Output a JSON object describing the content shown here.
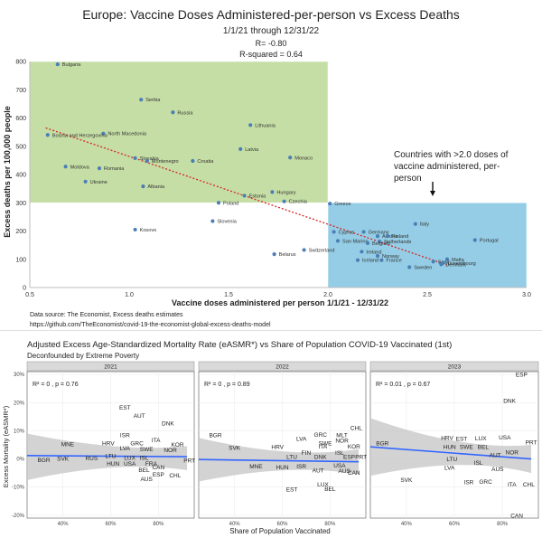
{
  "top_chart": {
    "title": "Europe: Vaccine Doses Administered-per-person vs Excess Deaths",
    "subtitle": "1/1/21 through 12/31/22",
    "r_label": "R= -0.80",
    "r2_label": "R-squared = 0.64",
    "annotation": [
      "Countries with >2.0 doses of",
      "vaccine administered, per-",
      "person"
    ],
    "xlabel": "Vaccine doses administered per person 1/1/21 - 12/31/22",
    "ylabel": "Excess deaths per 100,000 people",
    "source_line": "Data source: The Economist, Excess deaths estimates",
    "source_url": "https://github.com/TheEconomist/covid-19-the-economist-global-excess-deaths-model",
    "colors": {
      "green_region": "#c5dea5",
      "blue_region": "#94cde5",
      "point": "#4a7fb5",
      "trend": "#d62728"
    }
  },
  "bottom_chart": {
    "title": "Adjusted Excess Age-Standardized Mortality Rate (eASMR*) vs Share of Population COVID-19 Vaccinated (1st)",
    "subtitle": "Deconfounded by Extreme Poverty",
    "xlabel": "Share of Population Vaccinated",
    "ylabel": "Excess Mortality (eASMR*)",
    "colors": {
      "panel_bg": "#ebebeb",
      "strip_bg": "#d9d9d9",
      "band": "#c8c8c8",
      "fit": "#3366ff"
    }
  },
  "chart_data": [
    {
      "type": "scatter",
      "title": "Europe: Vaccine Doses Administered-per-person vs Excess Deaths",
      "xlabel": "Vaccine doses administered per person 1/1/21 - 12/31/22",
      "ylabel": "Excess deaths per 100,000 people",
      "xlim": [
        0.5,
        3.0
      ],
      "ylim": [
        0,
        800
      ],
      "xticks": [
        "0.5",
        "1.0",
        "1.5",
        "2.0",
        "2.5",
        "3.0"
      ],
      "yticks": [
        "0",
        "100",
        "200",
        "300",
        "400",
        "500",
        "600",
        "700",
        "800"
      ],
      "grid": false,
      "regions": [
        {
          "x": [
            0.5,
            2.0
          ],
          "y": [
            300,
            800
          ],
          "color": "#c5dea5"
        },
        {
          "x": [
            2.0,
            3.0
          ],
          "y": [
            0,
            300
          ],
          "color": "#94cde5"
        }
      ],
      "trendline": {
        "x": [
          0.58,
          2.6
        ],
        "y": [
          565,
          80
        ]
      },
      "points": [
        {
          "label": "Bulgaria",
          "x": 0.64,
          "y": 790
        },
        {
          "label": "Serbia",
          "x": 1.06,
          "y": 665
        },
        {
          "label": "Russia",
          "x": 1.22,
          "y": 620
        },
        {
          "label": "North Macedonia",
          "x": 0.87,
          "y": 545
        },
        {
          "label": "Bosnia and Herzegovina",
          "x": 0.59,
          "y": 540
        },
        {
          "label": "Lithuania",
          "x": 1.61,
          "y": 575
        },
        {
          "label": "Latvia",
          "x": 1.56,
          "y": 490
        },
        {
          "label": "Monaco",
          "x": 1.81,
          "y": 460
        },
        {
          "label": "Slovakia",
          "x": 1.03,
          "y": 458
        },
        {
          "label": "Montenegro",
          "x": 1.09,
          "y": 448
        },
        {
          "label": "Croatia",
          "x": 1.32,
          "y": 448
        },
        {
          "label": "Moldova",
          "x": 0.68,
          "y": 428
        },
        {
          "label": "Romania",
          "x": 0.85,
          "y": 422
        },
        {
          "label": "Ukraine",
          "x": 0.78,
          "y": 375
        },
        {
          "label": "Albania",
          "x": 1.07,
          "y": 358
        },
        {
          "label": "Hungary",
          "x": 1.72,
          "y": 338
        },
        {
          "label": "Estonia",
          "x": 1.58,
          "y": 325
        },
        {
          "label": "Czechia",
          "x": 1.78,
          "y": 305
        },
        {
          "label": "Poland",
          "x": 1.45,
          "y": 300
        },
        {
          "label": "Slovenia",
          "x": 1.42,
          "y": 235
        },
        {
          "label": "Kosovo",
          "x": 1.03,
          "y": 205
        },
        {
          "label": "Greece",
          "x": 2.01,
          "y": 297
        },
        {
          "label": "Italy",
          "x": 2.44,
          "y": 225
        },
        {
          "label": "Cyprus",
          "x": 2.03,
          "y": 197
        },
        {
          "label": "Germany",
          "x": 2.18,
          "y": 197
        },
        {
          "label": "Austria",
          "x": 2.25,
          "y": 182
        },
        {
          "label": "Finland",
          "x": 2.3,
          "y": 183
        },
        {
          "label": "Portugal",
          "x": 2.74,
          "y": 168
        },
        {
          "label": "San Marino",
          "x": 2.05,
          "y": 165
        },
        {
          "label": "Netherlands",
          "x": 2.26,
          "y": 163
        },
        {
          "label": "Belgium",
          "x": 2.2,
          "y": 157
        },
        {
          "label": "Switzerland",
          "x": 1.88,
          "y": 133
        },
        {
          "label": "Ireland",
          "x": 2.17,
          "y": 127
        },
        {
          "label": "Belarus",
          "x": 1.73,
          "y": 118
        },
        {
          "label": "Norway",
          "x": 2.25,
          "y": 112
        },
        {
          "label": "Malta",
          "x": 2.6,
          "y": 100
        },
        {
          "label": "Iceland",
          "x": 2.15,
          "y": 97
        },
        {
          "label": "France",
          "x": 2.27,
          "y": 97
        },
        {
          "label": "Spain",
          "x": 2.53,
          "y": 92
        },
        {
          "label": "Luxembourg",
          "x": 2.58,
          "y": 87
        },
        {
          "label": "Denmark",
          "x": 2.57,
          "y": 82
        },
        {
          "label": "Sweden",
          "x": 2.41,
          "y": 72
        }
      ]
    },
    {
      "type": "scatter",
      "facet": "2021",
      "stat_label": "R² = 0 , p = 0.76",
      "xlabel": "Share of Population Vaccinated",
      "ylabel": "Excess Mortality (eASMR*)",
      "xlim": [
        0.25,
        0.95
      ],
      "ylim": [
        -0.21,
        0.31
      ],
      "xticks": [
        "40%",
        "60%",
        "80%"
      ],
      "yticks": [
        "-20%",
        "-10%",
        "0%",
        "10%",
        "20%",
        "30%"
      ],
      "fit": {
        "x": [
          0.25,
          0.92
        ],
        "y": [
          0.012,
          0.008
        ]
      },
      "band": {
        "upper": [
          0.09,
          0.035,
          0.045
        ],
        "lower": [
          -0.075,
          -0.015,
          -0.04
        ]
      },
      "points": [
        {
          "label": "EST",
          "x": 0.66,
          "y": 0.183
        },
        {
          "label": "AUT",
          "x": 0.72,
          "y": 0.155
        },
        {
          "label": "DNK",
          "x": 0.84,
          "y": 0.127
        },
        {
          "label": "ISR",
          "x": 0.66,
          "y": 0.085
        },
        {
          "label": "ITA",
          "x": 0.79,
          "y": 0.068
        },
        {
          "label": "GRC",
          "x": 0.71,
          "y": 0.057
        },
        {
          "label": "HRV",
          "x": 0.59,
          "y": 0.056
        },
        {
          "label": "MNE",
          "x": 0.42,
          "y": 0.054
        },
        {
          "label": "KOR",
          "x": 0.88,
          "y": 0.052
        },
        {
          "label": "LVA",
          "x": 0.66,
          "y": 0.039
        },
        {
          "label": "SWE",
          "x": 0.75,
          "y": 0.036
        },
        {
          "label": "NOR",
          "x": 0.85,
          "y": 0.032
        },
        {
          "label": "LTU",
          "x": 0.6,
          "y": 0.012
        },
        {
          "label": "RUS",
          "x": 0.52,
          "y": 0.004
        },
        {
          "label": "LUX",
          "x": 0.68,
          "y": 0.005
        },
        {
          "label": "ISL",
          "x": 0.74,
          "y": 0.005
        },
        {
          "label": "SVK",
          "x": 0.4,
          "y": 0.002
        },
        {
          "label": "BGR",
          "x": 0.32,
          "y": -0.003
        },
        {
          "label": "PRT",
          "x": 0.93,
          "y": -0.005
        },
        {
          "label": "HUN",
          "x": 0.61,
          "y": -0.015
        },
        {
          "label": "USA",
          "x": 0.68,
          "y": -0.015
        },
        {
          "label": "FRA",
          "x": 0.77,
          "y": -0.015
        },
        {
          "label": "CAN",
          "x": 0.8,
          "y": -0.028
        },
        {
          "label": "BEL",
          "x": 0.74,
          "y": -0.038
        },
        {
          "label": "ESP",
          "x": 0.8,
          "y": -0.054
        },
        {
          "label": "CHL",
          "x": 0.87,
          "y": -0.058
        },
        {
          "label": "AUS",
          "x": 0.75,
          "y": -0.07
        }
      ]
    },
    {
      "type": "scatter",
      "facet": "2022",
      "stat_label": "R² = 0 , p = 0.89",
      "xlabel": "Share of Population Vaccinated",
      "ylabel": "Excess Mortality (eASMR*)",
      "xlim": [
        0.25,
        0.95
      ],
      "ylim": [
        -0.21,
        0.31
      ],
      "xticks": [
        "40%",
        "60%",
        "80%"
      ],
      "yticks": [
        "-20%",
        "-10%",
        "0%",
        "10%",
        "20%",
        "30%"
      ],
      "fit": {
        "x": [
          0.25,
          0.92
        ],
        "y": [
          -0.002,
          -0.01
        ]
      },
      "band": {
        "upper": [
          0.075,
          0.01,
          0.035
        ],
        "lower": [
          -0.08,
          -0.025,
          -0.055
        ]
      },
      "points": [
        {
          "label": "CHL",
          "x": 0.91,
          "y": 0.111
        },
        {
          "label": "BGR",
          "x": 0.32,
          "y": 0.085
        },
        {
          "label": "MLT",
          "x": 0.85,
          "y": 0.085
        },
        {
          "label": "GRC",
          "x": 0.76,
          "y": 0.087
        },
        {
          "label": "LVA",
          "x": 0.68,
          "y": 0.072
        },
        {
          "label": "NOR",
          "x": 0.85,
          "y": 0.066
        },
        {
          "label": "SWE",
          "x": 0.78,
          "y": 0.057
        },
        {
          "label": "HRV",
          "x": 0.58,
          "y": 0.044
        },
        {
          "label": "SVK",
          "x": 0.4,
          "y": 0.04
        },
        {
          "label": "ITA",
          "x": 0.77,
          "y": 0.045
        },
        {
          "label": "KOR",
          "x": 0.9,
          "y": 0.045
        },
        {
          "label": "LTU",
          "x": 0.64,
          "y": 0.008
        },
        {
          "label": "DNK",
          "x": 0.76,
          "y": 0.008
        },
        {
          "label": "ESP",
          "x": 0.88,
          "y": 0.008
        },
        {
          "label": "PRT",
          "x": 0.93,
          "y": 0.008
        },
        {
          "label": "ISL",
          "x": 0.84,
          "y": 0.022
        },
        {
          "label": "FIN",
          "x": 0.7,
          "y": 0.022
        },
        {
          "label": "MNE",
          "x": 0.49,
          "y": -0.025
        },
        {
          "label": "HUN",
          "x": 0.6,
          "y": -0.028
        },
        {
          "label": "ISR",
          "x": 0.68,
          "y": -0.025
        },
        {
          "label": "USA",
          "x": 0.84,
          "y": -0.023
        },
        {
          "label": "AUT",
          "x": 0.75,
          "y": -0.04
        },
        {
          "label": "AUS",
          "x": 0.86,
          "y": -0.042
        },
        {
          "label": "CAN",
          "x": 0.9,
          "y": -0.048
        },
        {
          "label": "LUX",
          "x": 0.77,
          "y": -0.09
        },
        {
          "label": "EST",
          "x": 0.64,
          "y": -0.108
        },
        {
          "label": "BEL",
          "x": 0.8,
          "y": -0.105
        }
      ]
    },
    {
      "type": "scatter",
      "facet": "2023",
      "stat_label": "R² = 0.01 , p = 0.67",
      "xlabel": "Share of Population Vaccinated",
      "ylabel": "Excess Mortality (eASMR*)",
      "xlim": [
        0.25,
        0.95
      ],
      "ylim": [
        -0.21,
        0.31
      ],
      "xticks": [
        "40%",
        "60%",
        "80%"
      ],
      "yticks": [
        "-20%",
        "-10%",
        "0%",
        "10%",
        "20%",
        "30%"
      ],
      "fit": {
        "x": [
          0.25,
          0.92
        ],
        "y": [
          0.043,
          0.0
        ]
      },
      "band": {
        "upper": [
          0.145,
          0.04,
          0.05
        ],
        "lower": [
          -0.06,
          0.0,
          -0.05
        ]
      },
      "points": [
        {
          "label": "ESP",
          "x": 0.88,
          "y": 0.3
        },
        {
          "label": "DNK",
          "x": 0.83,
          "y": 0.207
        },
        {
          "label": "USA",
          "x": 0.81,
          "y": 0.078
        },
        {
          "label": "LUX",
          "x": 0.71,
          "y": 0.074
        },
        {
          "label": "HRV",
          "x": 0.57,
          "y": 0.076
        },
        {
          "label": "EST",
          "x": 0.63,
          "y": 0.073
        },
        {
          "label": "BGR",
          "x": 0.3,
          "y": 0.056
        },
        {
          "label": "PRT",
          "x": 0.92,
          "y": 0.06
        },
        {
          "label": "HUN",
          "x": 0.58,
          "y": 0.043
        },
        {
          "label": "SWE",
          "x": 0.65,
          "y": 0.044
        },
        {
          "label": "BEL",
          "x": 0.72,
          "y": 0.044
        },
        {
          "label": "NOR",
          "x": 0.84,
          "y": 0.024
        },
        {
          "label": "AUT",
          "x": 0.77,
          "y": 0.015
        },
        {
          "label": "LTU",
          "x": 0.59,
          "y": 0.0
        },
        {
          "label": "ISL",
          "x": 0.7,
          "y": -0.013
        },
        {
          "label": "LVA",
          "x": 0.58,
          "y": -0.03
        },
        {
          "label": "AUS",
          "x": 0.78,
          "y": -0.035
        },
        {
          "label": "SVK",
          "x": 0.4,
          "y": -0.073
        },
        {
          "label": "ISR",
          "x": 0.66,
          "y": -0.082
        },
        {
          "label": "GRC",
          "x": 0.73,
          "y": -0.08
        },
        {
          "label": "ITA",
          "x": 0.84,
          "y": -0.09
        },
        {
          "label": "CHL",
          "x": 0.91,
          "y": -0.09
        },
        {
          "label": "CAN",
          "x": 0.86,
          "y": -0.2
        }
      ]
    }
  ]
}
